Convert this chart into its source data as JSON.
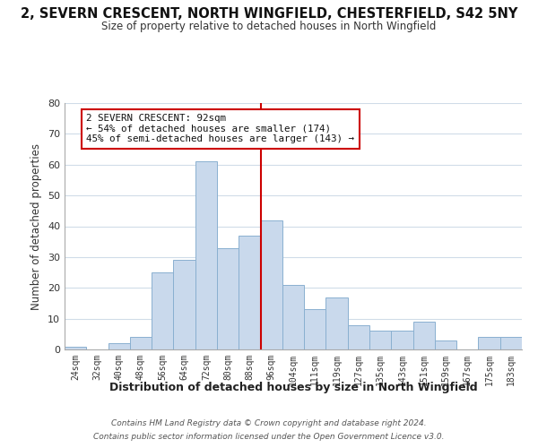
{
  "title_line1": "2, SEVERN CRESCENT, NORTH WINGFIELD, CHESTERFIELD, S42 5NY",
  "title_line2": "Size of property relative to detached houses in North Wingfield",
  "xlabel": "Distribution of detached houses by size in North Wingfield",
  "ylabel": "Number of detached properties",
  "bar_labels": [
    "24sqm",
    "32sqm",
    "40sqm",
    "48sqm",
    "56sqm",
    "64sqm",
    "72sqm",
    "80sqm",
    "88sqm",
    "96sqm",
    "104sqm",
    "111sqm",
    "119sqm",
    "127sqm",
    "135sqm",
    "143sqm",
    "151sqm",
    "159sqm",
    "167sqm",
    "175sqm",
    "183sqm"
  ],
  "bar_heights": [
    1,
    0,
    2,
    4,
    25,
    29,
    61,
    33,
    37,
    42,
    21,
    13,
    17,
    8,
    6,
    6,
    9,
    3,
    0,
    4,
    4
  ],
  "bar_color": "#c9d9ec",
  "bar_edge_color": "#8ab0d0",
  "vline_index": 8.5,
  "vline_color": "#cc0000",
  "annotation_line1": "2 SEVERN CRESCENT: 92sqm",
  "annotation_line2": "← 54% of detached houses are smaller (174)",
  "annotation_line3": "45% of semi-detached houses are larger (143) →",
  "annotation_box_edge": "#cc0000",
  "ylim": [
    0,
    80
  ],
  "yticks": [
    0,
    10,
    20,
    30,
    40,
    50,
    60,
    70,
    80
  ],
  "footer_line1": "Contains HM Land Registry data © Crown copyright and database right 2024.",
  "footer_line2": "Contains public sector information licensed under the Open Government Licence v3.0.",
  "bg_color": "#ffffff",
  "grid_color": "#d0dce8"
}
